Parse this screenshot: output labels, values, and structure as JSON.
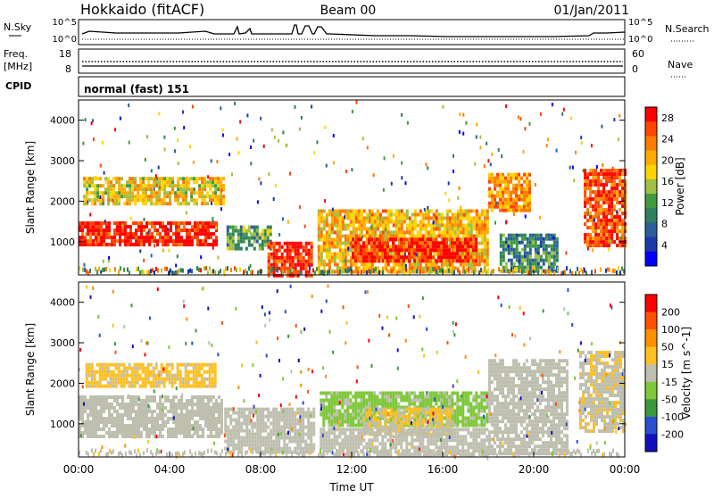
{
  "header": {
    "station": "Hokkaido (fitACF)",
    "beam": "Beam 00",
    "date": "01/Jan/2011"
  },
  "status_panels": {
    "nsky_label": "N.Sky",
    "nsky_ticks": [
      "10^5",
      "10^0"
    ],
    "nsearch_label": "N.Search",
    "nsearch_ticks": [
      "10^5",
      "10^0"
    ],
    "freq_label": "Freq.",
    "freq_unit": "[MHz]",
    "freq_ticks": [
      "18",
      "8"
    ],
    "nave_label": "Nave",
    "nave_ticks": [
      "60",
      "0"
    ],
    "cpid_label": "CPID",
    "cpid_text": "normal (fast) 151"
  },
  "chart_data": [
    {
      "type": "heatmap",
      "name": "power",
      "ylabel": "Slant Range [km]",
      "yticks": [
        "4000",
        "3000",
        "2000",
        "1000"
      ],
      "ylim": [
        180,
        4500
      ],
      "xlim": [
        "00:00",
        "24:00"
      ],
      "colorbar": {
        "label": "Power [dB]",
        "ticks": [
          "28",
          "24",
          "20",
          "16",
          "12",
          "8",
          "4"
        ],
        "range": [
          0,
          30
        ],
        "colors": [
          "#0000ff",
          "#1a3aa8",
          "#2a5e9c",
          "#2e7f5e",
          "#3f9a3f",
          "#9fc040",
          "#ffd400",
          "#ffaa00",
          "#ff7a00",
          "#ff4500",
          "#ff0000"
        ]
      },
      "regions": [
        {
          "start": 0.0,
          "end": 6.1,
          "range": [
            900,
            1500
          ],
          "power": 28
        },
        {
          "start": 0.2,
          "end": 6.4,
          "range": [
            1900,
            2600
          ],
          "power": 18
        },
        {
          "start": 6.5,
          "end": 8.5,
          "range": [
            800,
            1400
          ],
          "power": 12
        },
        {
          "start": 8.3,
          "end": 10.3,
          "range": [
            200,
            1000
          ],
          "power": 28
        },
        {
          "start": 10.5,
          "end": 18.0,
          "range": [
            300,
            1800
          ],
          "power": 20
        },
        {
          "start": 12.0,
          "end": 17.5,
          "range": [
            500,
            1100
          ],
          "power": 28
        },
        {
          "start": 18.0,
          "end": 19.8,
          "range": [
            1800,
            2700
          ],
          "power": 22
        },
        {
          "start": 18.5,
          "end": 21.0,
          "range": [
            300,
            1200
          ],
          "power": 10
        },
        {
          "start": 22.2,
          "end": 24.0,
          "range": [
            900,
            2800
          ],
          "power": 26
        }
      ]
    },
    {
      "type": "heatmap",
      "name": "velocity",
      "ylabel": "Slant Range [km]",
      "yticks": [
        "4000",
        "3000",
        "2000",
        "1000"
      ],
      "ylim": [
        180,
        4500
      ],
      "xlabel": "Time UT",
      "xticks": [
        "00:00",
        "04:00",
        "08:00",
        "12:00",
        "16:00",
        "20:00",
        "00:00"
      ],
      "xlim": [
        "00:00",
        "24:00"
      ],
      "colorbar": {
        "label": "Velocity [m s^-1]",
        "ticks": [
          "200",
          "100",
          "50",
          "15",
          "-15",
          "-50",
          "-100",
          "-200"
        ],
        "range": [
          -250,
          250
        ],
        "colors": [
          "#1010c0",
          "#2a4fd0",
          "#3a9a3a",
          "#7ec83a",
          "#bfbfb0",
          "#ffc020",
          "#ff9000",
          "#ff5000",
          "#ff0000"
        ]
      },
      "regions": [
        {
          "start": 0.0,
          "end": 6.3,
          "range": [
            700,
            1700
          ],
          "velocity": 0
        },
        {
          "start": 0.3,
          "end": 6.0,
          "range": [
            1900,
            2500
          ],
          "velocity": 40
        },
        {
          "start": 6.4,
          "end": 10.3,
          "range": [
            300,
            1400
          ],
          "velocity": 0
        },
        {
          "start": 10.6,
          "end": 18.0,
          "range": [
            1000,
            1800
          ],
          "velocity": -40
        },
        {
          "start": 12.5,
          "end": 16.5,
          "range": [
            700,
            1400
          ],
          "velocity": 30
        },
        {
          "start": 10.6,
          "end": 18.0,
          "range": [
            200,
            900
          ],
          "velocity": 0
        },
        {
          "start": 18.0,
          "end": 21.5,
          "range": [
            300,
            2600
          ],
          "velocity": 0
        },
        {
          "start": 22.0,
          "end": 24.0,
          "range": [
            800,
            2800
          ],
          "velocity": 20
        }
      ]
    }
  ]
}
